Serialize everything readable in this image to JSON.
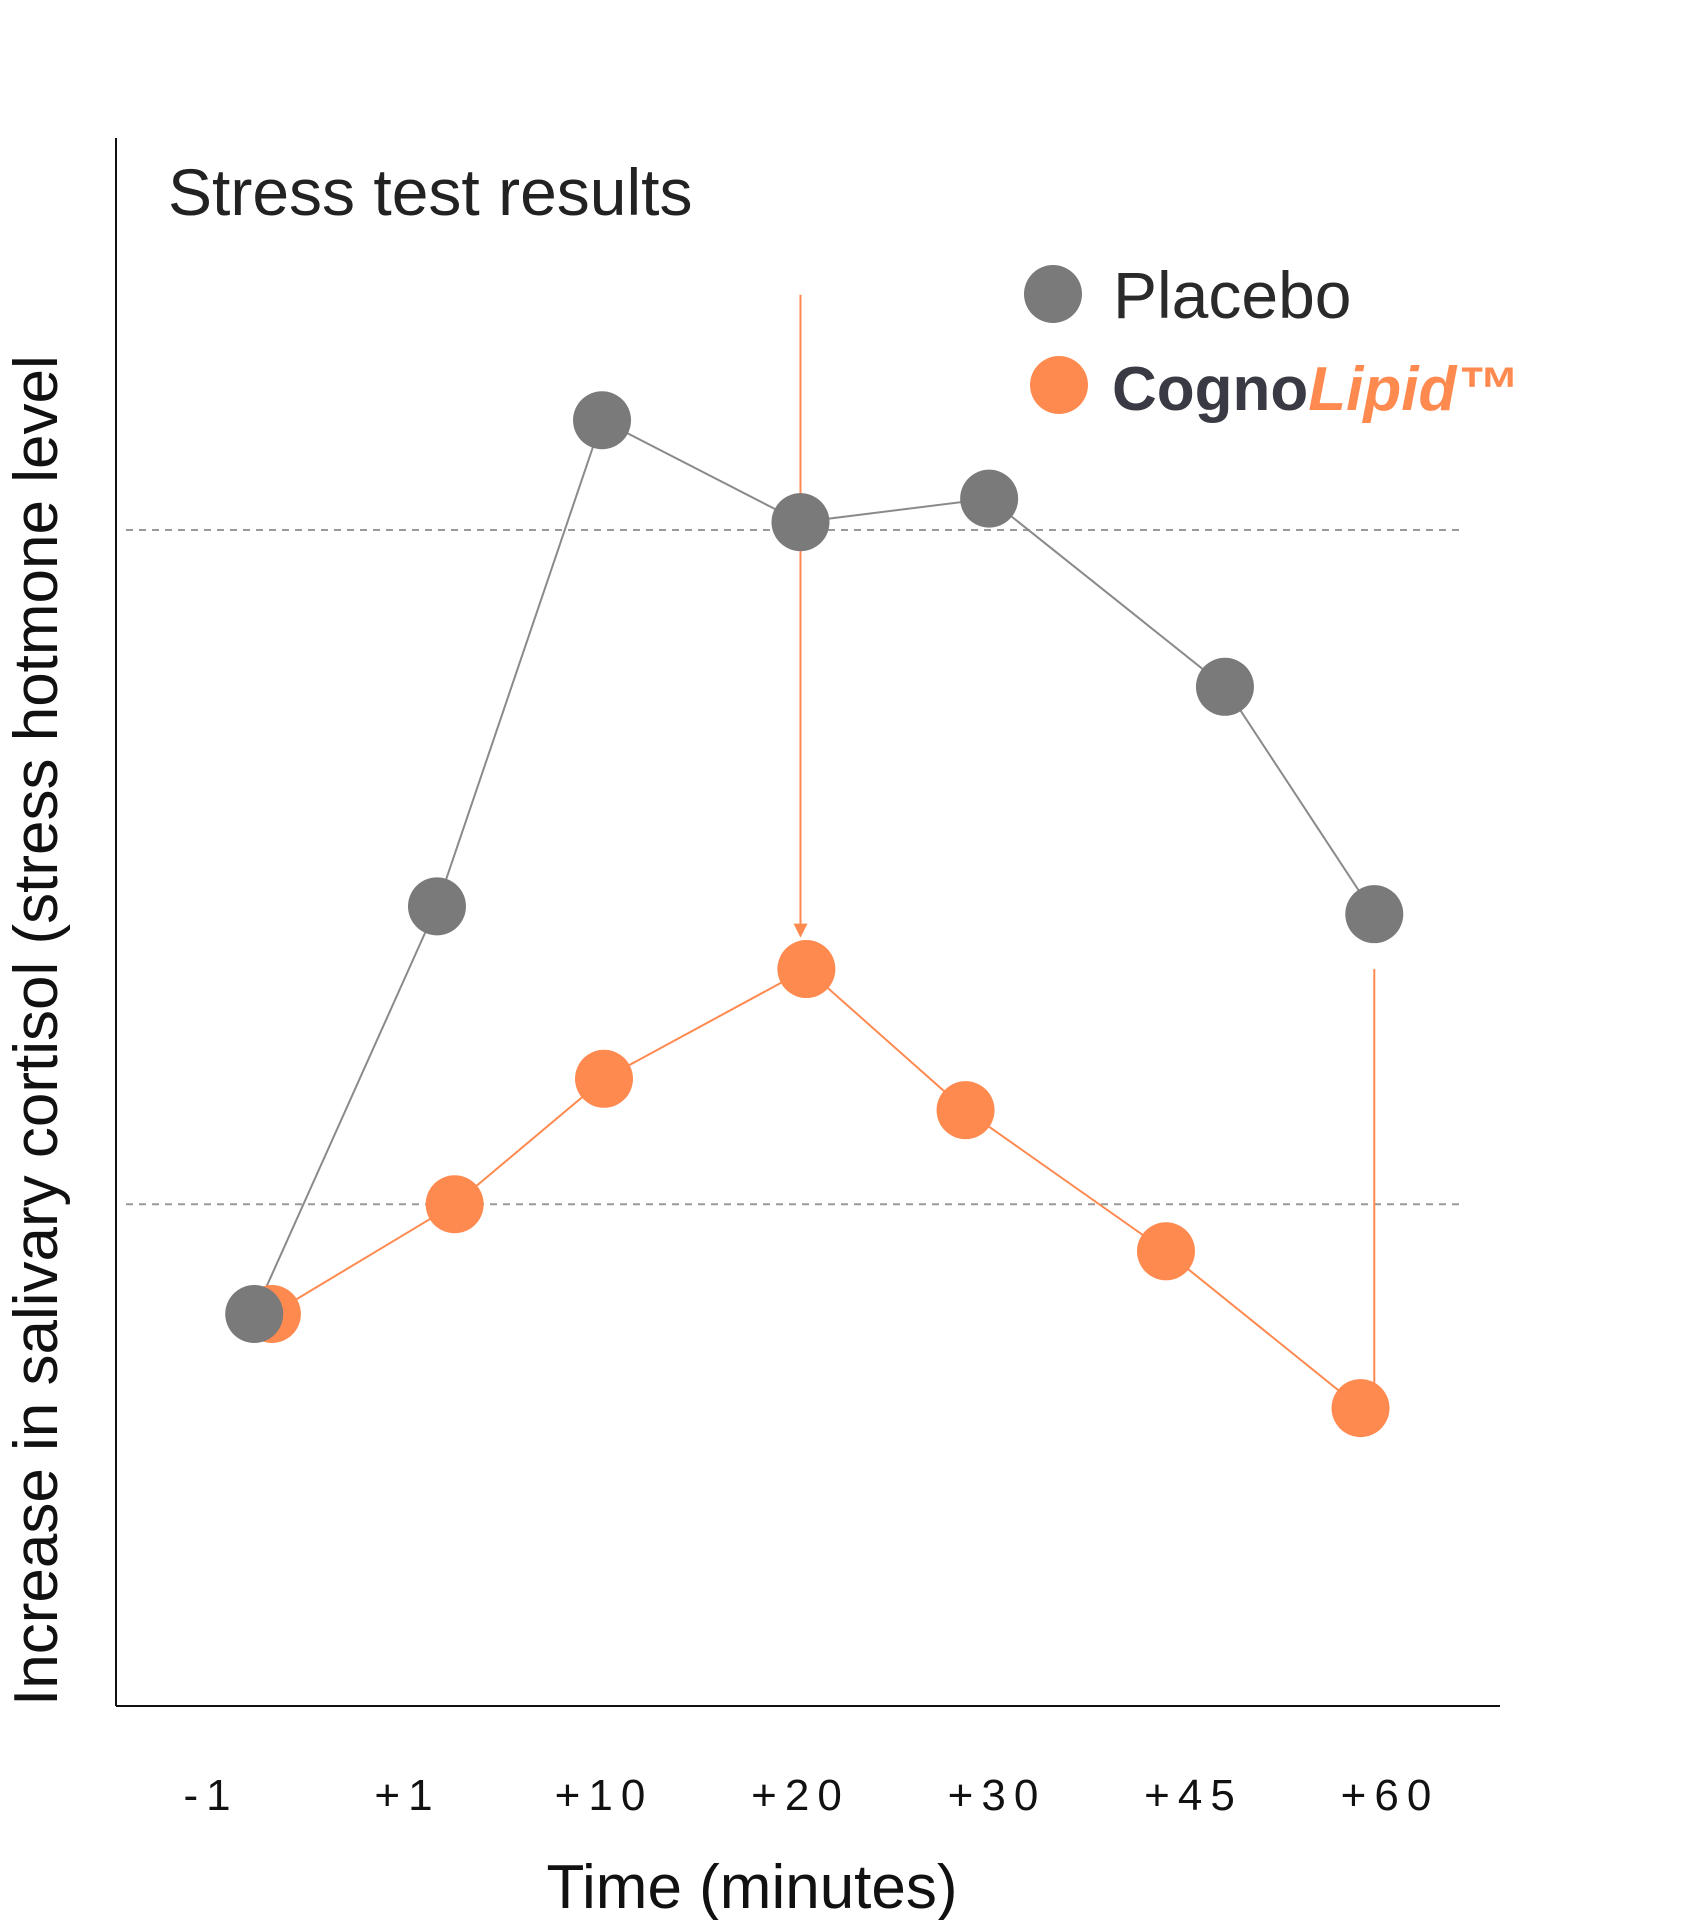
{
  "chart_data": {
    "type": "line",
    "title": "Stress test results",
    "xlabel": "Time (minutes)",
    "ylabel": "Increase in salivary cortisol (stress hotmone level",
    "categories": [
      "-1",
      "+1",
      "+10",
      "+20",
      "+30",
      "+45",
      "+60"
    ],
    "ylim": [
      0,
      100
    ],
    "grid": false,
    "legend_position": "top-right",
    "reference_lines": [
      75,
      32
    ],
    "series": [
      {
        "name": "Placebo",
        "color": "#7a7a7a",
        "line_color": "#8a8a8a",
        "x": [
          0.22,
          1.15,
          1.99,
          3.0,
          3.96,
          5.16,
          5.92
        ],
        "values": [
          25,
          51,
          82,
          75.5,
          77,
          65,
          50.5
        ]
      },
      {
        "name": "CognoLipid™",
        "color": "#ff8a50",
        "line_color": "#ff8a50",
        "x": [
          0.31,
          1.24,
          2.0,
          3.03,
          3.84,
          4.86,
          5.85
        ],
        "values": [
          25,
          32,
          40,
          47,
          38,
          29,
          19
        ]
      }
    ],
    "arrows": [
      {
        "x": 3.0,
        "from": 90,
        "to": 49,
        "color": "#ff8a50"
      },
      {
        "x": 5.92,
        "from": 47,
        "to": 17.5,
        "color": "#ff8a50"
      }
    ]
  },
  "legend": {
    "placebo_label": "Placebo",
    "brand_prefix": "Cogno",
    "brand_suffix": "Lipid™"
  }
}
